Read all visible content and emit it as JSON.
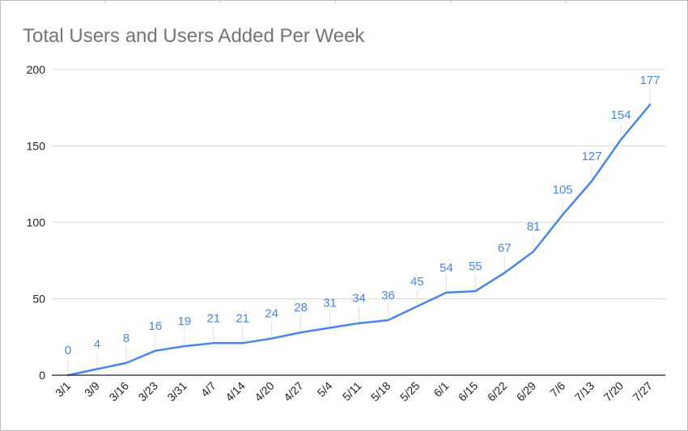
{
  "chart_data": {
    "type": "line",
    "title": "Total Users and Users Added Per Week",
    "xlabel": "",
    "ylabel": "",
    "categories": [
      "3/1",
      "3/9",
      "3/16",
      "3/23",
      "3/31",
      "4/7",
      "4/14",
      "4/20",
      "4/27",
      "5/4",
      "5/11",
      "5/18",
      "5/25",
      "6/1",
      "6/15",
      "6/22",
      "6/29",
      "7/6",
      "7/13",
      "7/20",
      "7/27"
    ],
    "series": [
      {
        "values": [
          0,
          4,
          8,
          16,
          19,
          21,
          21,
          24,
          28,
          31,
          34,
          36,
          45,
          54,
          55,
          67,
          81,
          105,
          127,
          154,
          177
        ]
      }
    ],
    "ylim": [
      0,
      200
    ],
    "yticks": [
      "0",
      "50",
      "100",
      "150",
      "200"
    ],
    "grid": true,
    "legend": "none",
    "data_labels": true,
    "colors": {
      "line": "#4a86e8",
      "grid": "#d9d9d9",
      "axis": "#222222",
      "title": "#757575"
    }
  }
}
